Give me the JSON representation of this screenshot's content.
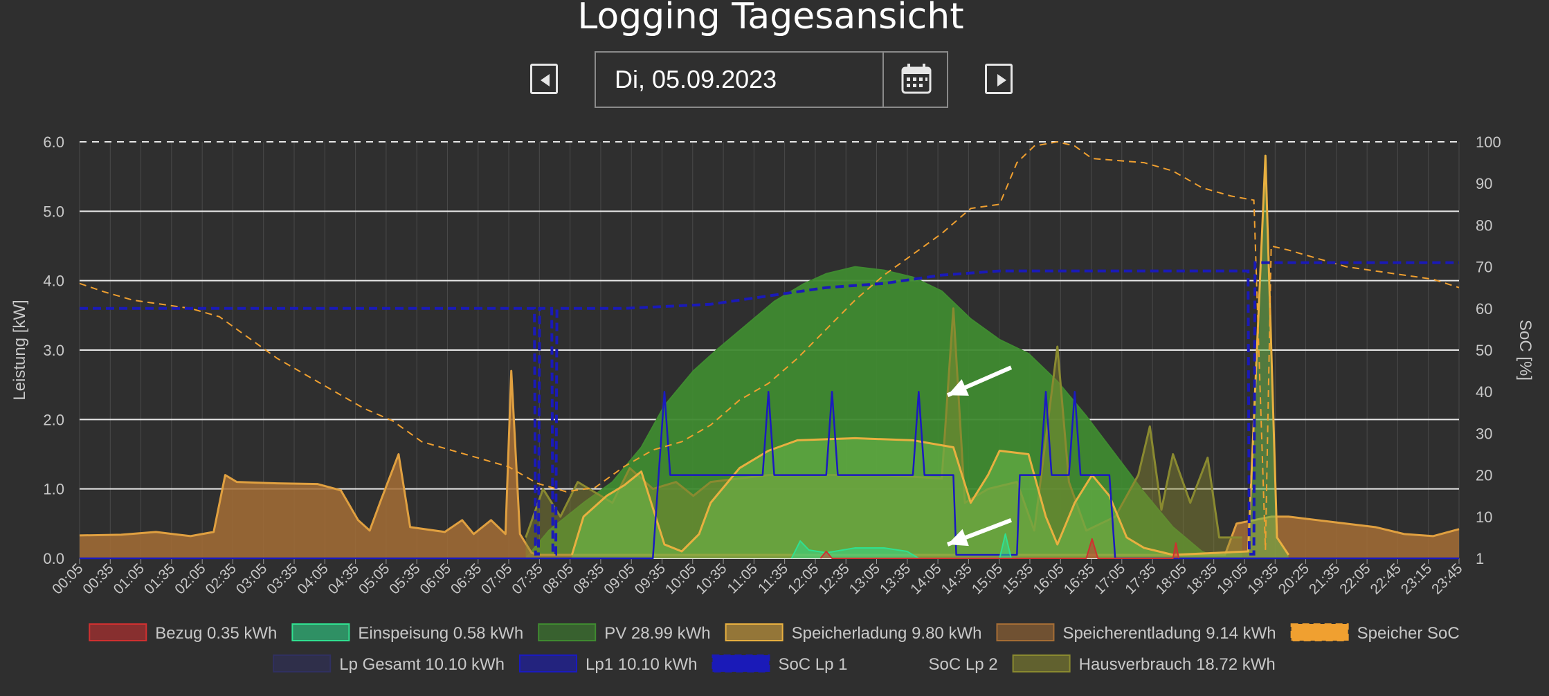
{
  "page": {
    "title": "Logging Tagesansicht",
    "date_value": "Di, 05.09.2023"
  },
  "icons": {
    "prev": "caret-left-square-icon",
    "next": "caret-right-square-icon",
    "calendar": "calendar-icon"
  },
  "colors": {
    "background": "#2f2f2f",
    "grid": "#d9d9d9",
    "bezug": "#d03030",
    "einspeisung": "#30e090",
    "pv": "#3f8a30",
    "speicherladung": "#e8b040",
    "speicherentladung": "#a56d35",
    "speicher_soc": "#f0a030",
    "lp_gesamt": "#303060",
    "lp1": "#1a1ac0",
    "soc_lp1": "#1a1ab8",
    "hausverbrauch": "#8a8a30"
  },
  "chart_data": {
    "type": "area",
    "y_left": {
      "label": "Leistung [kW]",
      "range": [
        0,
        6
      ],
      "ticks": [
        "0.0",
        "1.0",
        "2.0",
        "3.0",
        "4.0",
        "5.0",
        "6.0"
      ]
    },
    "y_right": {
      "label": "SoC [%]",
      "range": [
        0,
        100
      ],
      "ticks": [
        "1",
        "10",
        "20",
        "30",
        "40",
        "50",
        "60",
        "70",
        "80",
        "90",
        "100"
      ]
    },
    "x_ticks": [
      "00:05",
      "00:35",
      "01:05",
      "01:35",
      "02:05",
      "02:35",
      "03:05",
      "03:35",
      "04:05",
      "04:35",
      "05:05",
      "05:35",
      "06:05",
      "06:35",
      "07:05",
      "07:35",
      "08:05",
      "08:35",
      "09:05",
      "09:35",
      "10:05",
      "10:35",
      "11:05",
      "11:35",
      "12:05",
      "12:35",
      "13:05",
      "13:35",
      "14:05",
      "14:35",
      "15:05",
      "15:35",
      "16:05",
      "16:35",
      "17:05",
      "17:35",
      "18:05",
      "18:35",
      "19:05",
      "19:35",
      "20:25",
      "21:35",
      "22:05",
      "22:45",
      "23:15",
      "23:45"
    ],
    "legend": [
      {
        "label": "Bezug 0.35 kWh",
        "color": "#d03030"
      },
      {
        "label": "Einspeisung 0.58 kWh",
        "color": "#30e090"
      },
      {
        "label": "PV 28.99 kWh",
        "color": "#3f8a30"
      },
      {
        "label": "Speicherladung 9.80 kWh",
        "color": "#e8b040"
      },
      {
        "label": "Speicherentladung 9.14 kWh",
        "color": "#a56d35"
      },
      {
        "label": "Speicher SoC",
        "color": "#f0a030"
      },
      {
        "label": "Lp Gesamt 10.10 kWh",
        "color": "#303060"
      },
      {
        "label": "Lp1 10.10 kWh",
        "color": "#1a1ac0"
      },
      {
        "label": "SoC Lp 1",
        "color": "#1a1ab8"
      },
      {
        "label": "SoC Lp 2",
        "color": ""
      },
      {
        "label": "Hausverbrauch 18.72 kWh",
        "color": "#8a8a30"
      }
    ],
    "series": [
      {
        "key": "pv",
        "points": [
          [
            7.8,
            0
          ],
          [
            8.2,
            0.4
          ],
          [
            8.8,
            0.8
          ],
          [
            9.3,
            1.1
          ],
          [
            9.8,
            1.6
          ],
          [
            10.2,
            2.2
          ],
          [
            10.7,
            2.7
          ],
          [
            11.1,
            3.0
          ],
          [
            11.6,
            3.35
          ],
          [
            12.1,
            3.7
          ],
          [
            12.6,
            3.95
          ],
          [
            13.0,
            4.1
          ],
          [
            13.5,
            4.2
          ],
          [
            14.0,
            4.15
          ],
          [
            14.5,
            4.05
          ],
          [
            15.0,
            3.85
          ],
          [
            15.5,
            3.45
          ],
          [
            16.0,
            3.15
          ],
          [
            16.5,
            2.95
          ],
          [
            17.0,
            2.55
          ],
          [
            17.5,
            2.05
          ],
          [
            18.0,
            1.5
          ],
          [
            18.5,
            0.95
          ],
          [
            19.0,
            0.45
          ],
          [
            19.5,
            0.1
          ],
          [
            19.8,
            0
          ]
        ]
      },
      {
        "key": "speicherentladung",
        "points": [
          [
            0.08,
            0.33
          ],
          [
            0.8,
            0.34
          ],
          [
            1.4,
            0.38
          ],
          [
            2.0,
            0.32
          ],
          [
            2.4,
            0.38
          ],
          [
            2.6,
            1.2
          ],
          [
            2.8,
            1.1
          ],
          [
            3.5,
            1.08
          ],
          [
            4.2,
            1.07
          ],
          [
            4.6,
            0.98
          ],
          [
            4.9,
            0.55
          ],
          [
            5.1,
            0.4
          ],
          [
            5.3,
            0.85
          ],
          [
            5.6,
            1.5
          ],
          [
            5.8,
            0.45
          ],
          [
            6.4,
            0.38
          ],
          [
            6.7,
            0.55
          ],
          [
            6.9,
            0.35
          ],
          [
            7.2,
            0.55
          ],
          [
            7.45,
            0.35
          ],
          [
            7.55,
            2.7
          ],
          [
            7.7,
            0.35
          ],
          [
            7.9,
            0.08
          ],
          [
            8.0,
            0.05
          ],
          [
            19.9,
            0.05
          ],
          [
            20.1,
            0.5
          ],
          [
            20.7,
            0.6
          ],
          [
            21.0,
            0.6
          ],
          [
            21.5,
            0.55
          ],
          [
            22.0,
            0.5
          ],
          [
            22.5,
            0.45
          ],
          [
            23.0,
            0.35
          ],
          [
            23.5,
            0.32
          ],
          [
            23.95,
            0.42
          ]
        ]
      },
      {
        "key": "speicherladung",
        "points": [
          [
            8.6,
            0.05
          ],
          [
            8.8,
            0.6
          ],
          [
            9.2,
            0.9
          ],
          [
            9.5,
            1.05
          ],
          [
            9.8,
            1.25
          ],
          [
            10.2,
            0.2
          ],
          [
            10.5,
            0.1
          ],
          [
            10.8,
            0.35
          ],
          [
            11.0,
            0.8
          ],
          [
            11.5,
            1.3
          ],
          [
            12.0,
            1.55
          ],
          [
            12.5,
            1.7
          ],
          [
            13.5,
            1.73
          ],
          [
            14.5,
            1.7
          ],
          [
            15.2,
            1.6
          ],
          [
            15.5,
            0.8
          ],
          [
            15.8,
            1.2
          ],
          [
            16.0,
            1.55
          ],
          [
            16.5,
            1.5
          ],
          [
            16.8,
            0.6
          ],
          [
            17.0,
            0.2
          ],
          [
            17.3,
            0.8
          ],
          [
            17.6,
            1.2
          ],
          [
            17.9,
            0.9
          ],
          [
            18.2,
            0.3
          ],
          [
            18.5,
            0.15
          ],
          [
            19.0,
            0.05
          ],
          [
            20.3,
            0.1
          ],
          [
            20.6,
            5.8
          ],
          [
            20.8,
            0.3
          ],
          [
            21.0,
            0.05
          ]
        ]
      },
      {
        "key": "hausverbrauch",
        "points": [
          [
            7.8,
            0.3
          ],
          [
            8.1,
            1.0
          ],
          [
            8.4,
            0.6
          ],
          [
            8.7,
            1.1
          ],
          [
            9.3,
            0.8
          ],
          [
            9.6,
            1.3
          ],
          [
            10.0,
            1.0
          ],
          [
            10.4,
            1.1
          ],
          [
            10.7,
            0.9
          ],
          [
            11.0,
            1.1
          ],
          [
            12.0,
            1.2
          ],
          [
            13.0,
            1.2
          ],
          [
            14.0,
            1.2
          ],
          [
            15.0,
            1.15
          ],
          [
            15.2,
            3.6
          ],
          [
            15.4,
            0.8
          ],
          [
            15.8,
            1.0
          ],
          [
            16.3,
            1.1
          ],
          [
            16.6,
            0.4
          ],
          [
            17.0,
            3.05
          ],
          [
            17.2,
            1.1
          ],
          [
            17.5,
            0.4
          ],
          [
            18.0,
            0.6
          ],
          [
            18.4,
            1.2
          ],
          [
            18.6,
            1.9
          ],
          [
            18.8,
            0.7
          ],
          [
            19.0,
            1.5
          ],
          [
            19.3,
            0.8
          ],
          [
            19.6,
            1.45
          ],
          [
            19.8,
            0.3
          ],
          [
            20.2,
            0.3
          ]
        ]
      },
      {
        "key": "lp1",
        "points": [
          [
            0.08,
            0
          ],
          [
            10.0,
            0
          ],
          [
            10.1,
            1.2
          ],
          [
            10.2,
            2.4
          ],
          [
            10.3,
            1.2
          ],
          [
            11.9,
            1.2
          ],
          [
            12.0,
            2.4
          ],
          [
            12.1,
            1.2
          ],
          [
            13.0,
            1.2
          ],
          [
            13.1,
            2.4
          ],
          [
            13.2,
            1.2
          ],
          [
            14.5,
            1.2
          ],
          [
            14.6,
            2.4
          ],
          [
            14.7,
            1.2
          ],
          [
            15.2,
            1.2
          ],
          [
            15.25,
            0.05
          ],
          [
            16.3,
            0.05
          ],
          [
            16.35,
            1.2
          ],
          [
            16.7,
            1.2
          ],
          [
            16.8,
            2.4
          ],
          [
            16.9,
            1.2
          ],
          [
            17.2,
            1.2
          ],
          [
            17.3,
            2.4
          ],
          [
            17.4,
            1.2
          ],
          [
            17.9,
            1.2
          ],
          [
            18.0,
            0
          ],
          [
            23.95,
            0
          ]
        ]
      },
      {
        "key": "einspeisung",
        "points": [
          [
            12.4,
            0
          ],
          [
            12.55,
            0.25
          ],
          [
            12.7,
            0.12
          ],
          [
            13.0,
            0.08
          ],
          [
            13.5,
            0.15
          ],
          [
            14.0,
            0.15
          ],
          [
            14.4,
            0.1
          ],
          [
            14.6,
            0
          ],
          [
            16.0,
            0
          ],
          [
            16.1,
            0.35
          ],
          [
            16.2,
            0
          ]
        ]
      },
      {
        "key": "bezug",
        "points": [
          [
            12.9,
            0
          ],
          [
            13.0,
            0.1
          ],
          [
            13.1,
            0
          ],
          [
            17.5,
            0
          ],
          [
            17.6,
            0.28
          ],
          [
            17.7,
            0
          ],
          [
            19.0,
            0
          ],
          [
            19.05,
            0.22
          ],
          [
            19.1,
            0
          ]
        ]
      },
      {
        "key": "speicher_soc",
        "points": [
          [
            0.08,
            66
          ],
          [
            0.5,
            64
          ],
          [
            1.0,
            62
          ],
          [
            1.5,
            61
          ],
          [
            2.0,
            60
          ],
          [
            2.5,
            58
          ],
          [
            3.0,
            53
          ],
          [
            3.5,
            48
          ],
          [
            4.0,
            44
          ],
          [
            4.5,
            40
          ],
          [
            5.0,
            36
          ],
          [
            5.5,
            33
          ],
          [
            6.0,
            28
          ],
          [
            6.5,
            26
          ],
          [
            7.0,
            24
          ],
          [
            7.5,
            22
          ],
          [
            8.0,
            18
          ],
          [
            8.5,
            16
          ],
          [
            9.0,
            17
          ],
          [
            9.5,
            22
          ],
          [
            10.0,
            26
          ],
          [
            10.5,
            28
          ],
          [
            11.0,
            32
          ],
          [
            11.5,
            38
          ],
          [
            12.0,
            42
          ],
          [
            12.5,
            48
          ],
          [
            13.0,
            55
          ],
          [
            13.5,
            62
          ],
          [
            14.0,
            68
          ],
          [
            14.5,
            73
          ],
          [
            15.0,
            78
          ],
          [
            15.5,
            84
          ],
          [
            16.0,
            85
          ],
          [
            16.3,
            95
          ],
          [
            16.6,
            99
          ],
          [
            17.0,
            100
          ],
          [
            17.3,
            99
          ],
          [
            17.6,
            96
          ],
          [
            18.5,
            95
          ],
          [
            19.0,
            93
          ],
          [
            19.5,
            89
          ],
          [
            20.0,
            87
          ],
          [
            20.4,
            86
          ],
          [
            20.6,
            2
          ],
          [
            20.7,
            75
          ],
          [
            21.0,
            74
          ],
          [
            21.5,
            72
          ],
          [
            22.0,
            70
          ],
          [
            22.5,
            69
          ],
          [
            23.0,
            68
          ],
          [
            23.5,
            67
          ],
          [
            23.95,
            65
          ]
        ]
      },
      {
        "key": "soc_lp1",
        "points": [
          [
            0.08,
            60
          ],
          [
            7.95,
            60
          ],
          [
            7.97,
            1
          ],
          [
            8.02,
            1
          ],
          [
            8.04,
            60
          ],
          [
            8.25,
            60
          ],
          [
            8.27,
            1
          ],
          [
            8.32,
            1
          ],
          [
            8.34,
            60
          ],
          [
            9.5,
            60
          ],
          [
            11.0,
            61
          ],
          [
            12.0,
            63
          ],
          [
            13.0,
            65
          ],
          [
            14.0,
            66
          ],
          [
            15.0,
            68
          ],
          [
            16.0,
            69
          ],
          [
            17.0,
            69
          ],
          [
            18.0,
            69
          ],
          [
            19.0,
            69
          ],
          [
            20.3,
            69
          ],
          [
            20.32,
            1
          ],
          [
            20.4,
            1
          ],
          [
            20.42,
            71
          ],
          [
            23.95,
            71
          ]
        ]
      }
    ],
    "annotations": [
      {
        "type": "arrow",
        "from": [
          16.2,
          2.75
        ],
        "to": [
          15.1,
          2.35
        ]
      },
      {
        "type": "arrow",
        "from": [
          16.2,
          0.55
        ],
        "to": [
          15.1,
          0.2
        ]
      }
    ]
  }
}
